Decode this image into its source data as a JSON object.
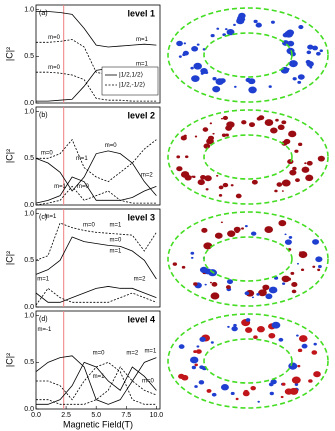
{
  "chart_data": [
    {
      "type": "line",
      "panel": "(a)",
      "title": "level 1",
      "y_label": "|C|²",
      "x": [
        0,
        1,
        2,
        3,
        4,
        5,
        6,
        7,
        8,
        9,
        10
      ],
      "xlim": [
        0,
        10.3
      ],
      "ylim": [
        0,
        1.05
      ],
      "yticks": [
        {
          "value": 0,
          "label": "0.0"
        },
        0.5,
        {
          "value": 1,
          "label": "1.0"
        }
      ],
      "vline": 2.3,
      "series": [
        {
          "name": "|1/2,1/2⟩",
          "dashed": false,
          "values": [
            0.98,
            0.98,
            0.97,
            0.95,
            0.8,
            0.62,
            0.6,
            0.61,
            0.62,
            0.63,
            0.62
          ]
        },
        {
          "name": "|1/2,-1/2⟩",
          "dashed": true,
          "values": [
            0.65,
            0.65,
            0.66,
            0.68,
            0.6,
            0.33,
            0.3,
            0.32,
            0.33,
            0.35,
            0.33
          ]
        },
        {
          "dashed": false,
          "values": [
            0.02,
            0.02,
            0.03,
            0.04,
            0.18,
            0.35,
            0.37,
            0.36,
            0.35,
            0.34,
            0.35
          ]
        },
        {
          "dashed": true,
          "values": [
            0.33,
            0.33,
            0.32,
            0.3,
            0.25,
            0.05,
            0.03,
            0.03,
            0.02,
            0.02,
            0.02
          ]
        }
      ],
      "annotations": [
        "m=0",
        "m=0",
        "m=1",
        "m=1"
      ]
    },
    {
      "type": "line",
      "panel": "(b)",
      "title": "level 2",
      "y_label": "|C|²",
      "x": [
        0,
        1,
        2,
        3,
        4,
        5,
        6,
        7,
        8,
        9,
        10
      ],
      "xlim": [
        0,
        10.3
      ],
      "ylim": [
        0,
        1.05
      ],
      "yticks": [
        {
          "value": 0,
          "label": "0.0"
        },
        0.5,
        {
          "value": 1,
          "label": "1.0"
        }
      ],
      "vline": 2.3,
      "series": [
        {
          "dashed": false,
          "values": [
            0.5,
            0.45,
            0.35,
            0.15,
            0.3,
            0.55,
            0.58,
            0.55,
            0.45,
            0.25,
            0.1
          ]
        },
        {
          "dashed": true,
          "values": [
            0.5,
            0.5,
            0.55,
            0.7,
            0.4,
            0.3,
            0.25,
            0.35,
            0.45,
            0.6,
            0.7
          ]
        },
        {
          "dashed": false,
          "values": [
            0.02,
            0.05,
            0.1,
            0.3,
            0.25,
            0.05,
            0.05,
            0.05,
            0.08,
            0.15,
            0.2
          ]
        },
        {
          "dashed": true,
          "values": [
            0,
            0.02,
            0.05,
            0.2,
            0.05,
            0.1,
            0.15,
            0.05,
            0.02,
            0.02,
            0.02
          ]
        }
      ],
      "annotations": [
        "m=0",
        "m=1",
        "m=0",
        "m=1",
        "m=0",
        "m=2"
      ]
    },
    {
      "type": "line",
      "panel": "(c)",
      "title": "level 3",
      "y_label": "|C|²",
      "x": [
        0,
        1,
        2,
        3,
        4,
        5,
        6,
        7,
        8,
        9,
        10
      ],
      "xlim": [
        0,
        10.3
      ],
      "ylim": [
        0,
        1.05
      ],
      "yticks": [
        {
          "value": 0,
          "label": "0.0"
        },
        0.5,
        {
          "value": 1,
          "label": "1.0"
        }
      ],
      "vline": 2.3,
      "series": [
        {
          "dashed": false,
          "values": [
            0.35,
            0.4,
            0.5,
            0.75,
            0.7,
            0.68,
            0.66,
            0.65,
            0.6,
            0.5,
            0.3
          ]
        },
        {
          "dashed": true,
          "values": [
            0.5,
            0.55,
            0.9,
            0.85,
            0.82,
            0.8,
            0.79,
            0.78,
            0.77,
            0.6,
            0.8
          ]
        },
        {
          "dashed": false,
          "values": [
            0.15,
            0.05,
            0.05,
            0.1,
            0.15,
            0.2,
            0.22,
            0.2,
            0.2,
            0.15,
            0.1
          ]
        },
        {
          "dashed": true,
          "values": [
            0.02,
            0.2,
            0.1,
            0.05,
            0.05,
            0.05,
            0.05,
            0.1,
            0.15,
            0.1,
            0.05
          ]
        }
      ],
      "annotations": [
        "m=1",
        "m=1",
        "m=0",
        "m=1",
        "m=0",
        "m=1",
        "m=2"
      ]
    },
    {
      "type": "line",
      "panel": "(d)",
      "title": "level 4",
      "y_label": "|C|²",
      "x_label": "Magnetic Field(T)",
      "x": [
        0,
        1,
        2,
        3,
        4,
        5,
        6,
        7,
        8,
        9,
        10
      ],
      "xlim": [
        0,
        10.3
      ],
      "xticks": [
        {
          "value": 0,
          "label": "0.0"
        },
        2.5,
        {
          "value": 5,
          "label": "5.0"
        },
        7.5,
        {
          "value": 10,
          "label": "10.0"
        }
      ],
      "ylim": [
        0,
        1.05
      ],
      "yticks": [
        {
          "value": 0,
          "label": "0.0"
        },
        0.5,
        {
          "value": 1,
          "label": "1.0"
        }
      ],
      "vline": 2.3,
      "series": [
        {
          "dashed": false,
          "values": [
            0.4,
            0.5,
            0.55,
            0.57,
            0.45,
            0.1,
            0.05,
            0.1,
            0.3,
            0.5,
            0.55
          ]
        },
        {
          "dashed": true,
          "values": [
            0.3,
            0.3,
            0.25,
            0.1,
            0.3,
            0.45,
            0.5,
            0.4,
            0.1,
            0.05,
            0.05
          ]
        },
        {
          "dashed": false,
          "values": [
            0.05,
            0.05,
            0.1,
            0.25,
            0.5,
            0.45,
            0.3,
            0.2,
            0.45,
            0.35,
            0.2
          ]
        },
        {
          "dashed": true,
          "values": [
            0.1,
            0.1,
            0.05,
            0.05,
            0.05,
            0.1,
            0.2,
            0.45,
            0.3,
            0.2,
            0.15
          ]
        }
      ],
      "annotations": [
        "m=-1",
        "m=0",
        "m=1",
        "m=2",
        "m=1",
        "m=0"
      ]
    }
  ]
}
